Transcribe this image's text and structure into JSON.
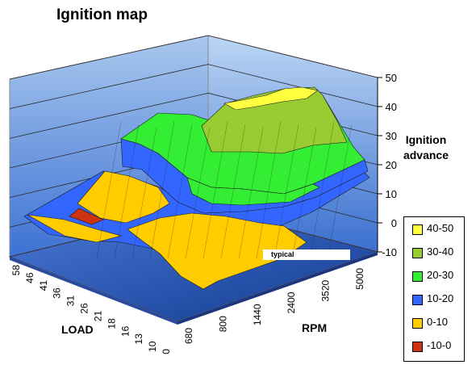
{
  "chart_data": {
    "type": "surface",
    "title": "Ignition map",
    "zlabel_line1": "Ignition",
    "zlabel_line2": "advance",
    "xlabel": "RPM",
    "ylabel": "LOAD",
    "zlim": [
      -10,
      50
    ],
    "z_ticks": [
      "-10",
      "0",
      "10",
      "20",
      "30",
      "40",
      "50"
    ],
    "rpm_ticks": [
      "680",
      "800",
      "1440",
      "2400",
      "3520",
      "5000"
    ],
    "load_ticks": [
      "0",
      "10",
      "13",
      "16",
      "18",
      "21",
      "26",
      "31",
      "36",
      "41",
      "46",
      "58"
    ],
    "legend": [
      {
        "label": "40-50",
        "color": "#ffff40"
      },
      {
        "label": "30-40",
        "color": "#99cc33"
      },
      {
        "label": "20-30",
        "color": "#33ee33"
      },
      {
        "label": "10-20",
        "color": "#3366ff"
      },
      {
        "label": "0-10",
        "color": "#ffcc00"
      },
      {
        "label": "-10-0",
        "color": "#cc3311"
      }
    ],
    "annotation": "typical",
    "grid": true
  }
}
